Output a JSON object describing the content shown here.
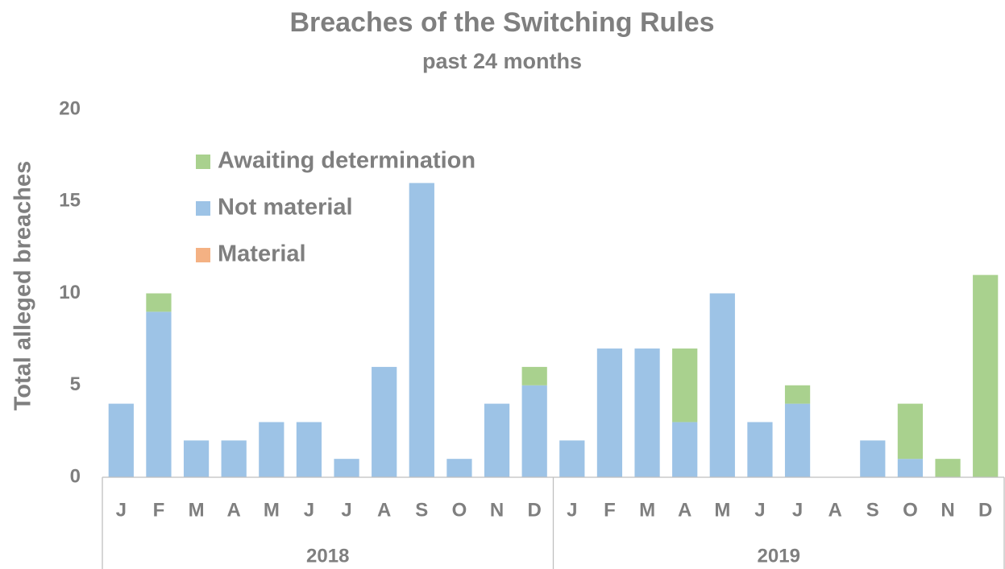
{
  "chart_data": {
    "type": "bar",
    "stacked": true,
    "title": "Breaches of the Switching Rules",
    "subtitle": "past 24 months",
    "y_label": "Total alleged breaches",
    "categories": [
      "J",
      "F",
      "M",
      "A",
      "M",
      "J",
      "J",
      "A",
      "S",
      "O",
      "N",
      "D",
      "J",
      "F",
      "M",
      "A",
      "M",
      "J",
      "J",
      "A",
      "S",
      "O",
      "N",
      "D"
    ],
    "groups": [
      "2018",
      "2019"
    ],
    "series": [
      {
        "name": "Material",
        "color": "#f4b183",
        "values": [
          0,
          0,
          0,
          0,
          0,
          0,
          0,
          0,
          0,
          0,
          0,
          0,
          0,
          0,
          0,
          0,
          0,
          0,
          0,
          0,
          0,
          0,
          0,
          0
        ]
      },
      {
        "name": "Not material",
        "color": "#9dc3e6",
        "values": [
          4,
          9,
          2,
          2,
          3,
          3,
          1,
          6,
          16,
          1,
          4,
          5,
          2,
          7,
          7,
          3,
          10,
          3,
          4,
          0,
          2,
          1,
          0,
          0
        ]
      },
      {
        "name": "Awaiting determination",
        "color": "#a9d18e",
        "values": [
          0,
          1,
          0,
          0,
          0,
          0,
          0,
          0,
          0,
          0,
          0,
          1,
          0,
          0,
          0,
          4,
          0,
          0,
          1,
          0,
          0,
          3,
          1,
          11
        ]
      }
    ],
    "ylim": [
      0,
      20
    ],
    "yticks": [
      0,
      5,
      10,
      15,
      20
    ],
    "grid": false,
    "legend": "upper left"
  }
}
